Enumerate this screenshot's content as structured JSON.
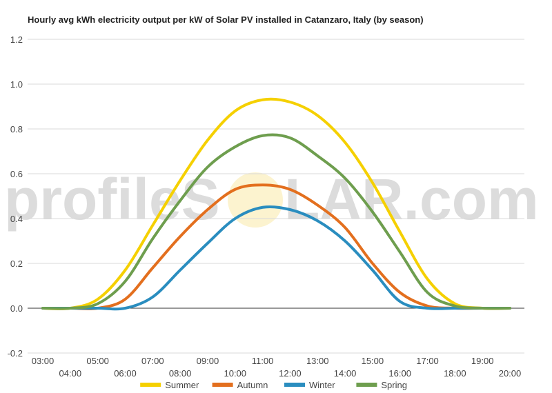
{
  "chart_data": {
    "type": "line",
    "title": "Hourly avg kWh electricity output per kW of Solar PV installed in Catanzaro, Italy (by season)",
    "xlabel": "",
    "ylabel": "",
    "ylim": [
      -0.2,
      1.2
    ],
    "yticks": [
      "-0.2",
      "0.0",
      "0.2",
      "0.4",
      "0.6",
      "0.8",
      "1.0",
      "1.2"
    ],
    "x": [
      "03:00",
      "04:00",
      "05:00",
      "06:00",
      "07:00",
      "08:00",
      "09:00",
      "10:00",
      "11:00",
      "12:00",
      "13:00",
      "14:00",
      "15:00",
      "16:00",
      "17:00",
      "18:00",
      "19:00",
      "20:00"
    ],
    "grid": true,
    "legend_position": "bottom",
    "series": [
      {
        "name": "Summer",
        "color": "#f5d000",
        "values": [
          0.0,
          0.0,
          0.04,
          0.17,
          0.37,
          0.57,
          0.75,
          0.88,
          0.93,
          0.92,
          0.86,
          0.74,
          0.56,
          0.34,
          0.13,
          0.02,
          0.0,
          0.0
        ]
      },
      {
        "name": "Autumn",
        "color": "#e36f1e",
        "values": [
          0.0,
          0.0,
          0.0,
          0.04,
          0.18,
          0.32,
          0.44,
          0.53,
          0.55,
          0.53,
          0.46,
          0.36,
          0.2,
          0.07,
          0.01,
          0.0,
          0.0,
          0.0
        ]
      },
      {
        "name": "Winter",
        "color": "#2a8dbf",
        "values": [
          0.0,
          0.0,
          0.0,
          0.0,
          0.05,
          0.17,
          0.29,
          0.4,
          0.45,
          0.44,
          0.39,
          0.3,
          0.17,
          0.03,
          0.0,
          0.0,
          0.0,
          0.0
        ]
      },
      {
        "name": "Spring",
        "color": "#6e9e4e",
        "values": [
          0.0,
          0.0,
          0.02,
          0.12,
          0.31,
          0.48,
          0.63,
          0.72,
          0.77,
          0.76,
          0.68,
          0.58,
          0.43,
          0.25,
          0.07,
          0.01,
          0.0,
          0.0
        ]
      }
    ]
  },
  "watermark": {
    "left_text": "profileS",
    "right_text": "LAR.com"
  }
}
